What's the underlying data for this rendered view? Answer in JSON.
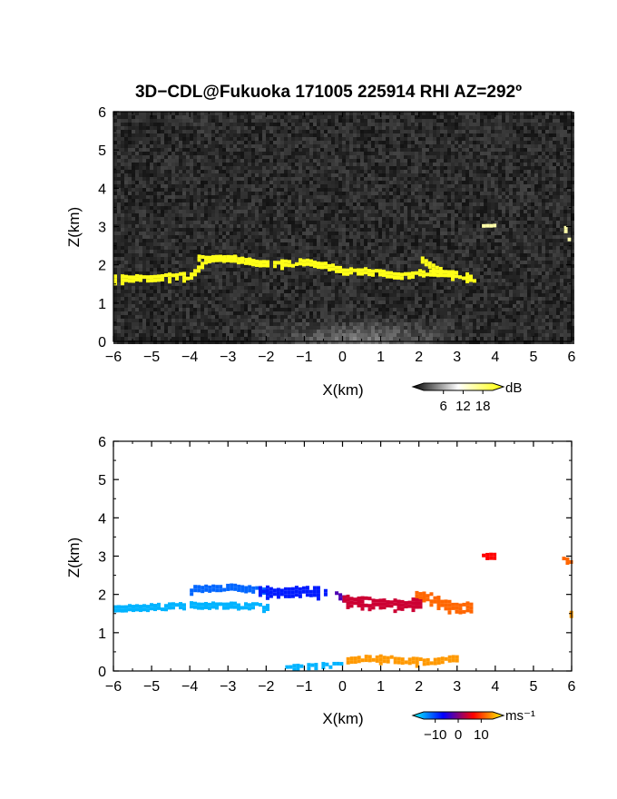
{
  "title": "3D−CDL@Fukuoka 171005 225914 RHI AZ=292º",
  "chart_data": [
    {
      "type": "heatmap",
      "panel": "intensity",
      "xlabel": "X(km)",
      "ylabel": "Z(km)",
      "xlim": [
        -6,
        6
      ],
      "ylim": [
        0,
        6
      ],
      "xticks": [
        "−6",
        "−5",
        "−4",
        "−3",
        "−2",
        "−1",
        "0",
        "1",
        "2",
        "3",
        "4",
        "5",
        "6"
      ],
      "yticks": [
        "0",
        "1",
        "2",
        "3",
        "4",
        "5",
        "6"
      ],
      "background": "noise",
      "colorbar": {
        "unit": "dB",
        "ticks": [
          "6",
          "12",
          "18"
        ],
        "tick_values": [
          6,
          12,
          18
        ],
        "range": [
          0,
          21
        ],
        "colors": [
          "#000000",
          "#ffffff",
          "#ffff00"
        ]
      },
      "layers": [
        {
          "x": [
            -6.0,
            -5.0,
            -4.0,
            -3.6,
            -3.0,
            -2.5,
            -2.0,
            -1.5,
            -1.0,
            -0.5,
            0.0,
            0.5,
            1.0,
            1.5,
            2.0,
            2.5,
            3.0,
            3.5
          ],
          "z": [
            1.65,
            1.68,
            1.73,
            2.15,
            2.2,
            2.1,
            2.05,
            2.05,
            2.1,
            2.0,
            1.85,
            1.85,
            1.8,
            1.72,
            1.8,
            1.8,
            1.75,
            1.65
          ],
          "thickness_km": 0.14,
          "value_db": 20
        },
        {
          "x": [
            -3.8,
            -3.0,
            -2.3
          ],
          "z": [
            2.2,
            2.2,
            2.1
          ],
          "thickness_km": 0.1,
          "value_db": 20
        },
        {
          "x": [
            2.05,
            2.3,
            2.55
          ],
          "z": [
            2.15,
            1.95,
            1.85
          ],
          "thickness_km": 0.18,
          "value_db": 20
        },
        {
          "x": [
            3.65,
            3.95
          ],
          "z": [
            3.02,
            3.03
          ],
          "thickness_km": 0.08,
          "value_db": 14
        },
        {
          "x": [
            5.8,
            5.95,
            5.9
          ],
          "z": [
            2.95,
            2.5,
            2.0
          ],
          "thickness_km": 0.1,
          "value_db": 14
        }
      ],
      "near_ground_glow": {
        "x_center": 0.5,
        "width_km": 3.0,
        "value_db": 10
      }
    },
    {
      "type": "heatmap",
      "panel": "velocity",
      "xlabel": "X(km)",
      "ylabel": "Z(km)",
      "xlim": [
        -6,
        6
      ],
      "ylim": [
        0,
        6
      ],
      "xticks": [
        "−6",
        "−5",
        "−4",
        "−3",
        "−2",
        "−1",
        "0",
        "1",
        "2",
        "3",
        "4",
        "5",
        "6"
      ],
      "yticks": [
        "0",
        "1",
        "2",
        "3",
        "4",
        "5",
        "6"
      ],
      "background": "white",
      "colorbar": {
        "unit": "ms⁻¹",
        "ticks": [
          "−10",
          "0",
          "10"
        ],
        "tick_values": [
          -10,
          0,
          10
        ],
        "range": [
          -15,
          15
        ],
        "colors": [
          "#00ffff",
          "#0000ff",
          "#ff0000",
          "#ffff00"
        ]
      },
      "layers": [
        {
          "x": [
            -6.0,
            -5.0,
            -4.0,
            -3.0,
            -2.0
          ],
          "z": [
            1.65,
            1.68,
            1.73,
            1.72,
            1.7
          ],
          "thickness_km": 0.14,
          "velocity": -12
        },
        {
          "x": [
            -4.0,
            -3.0,
            -2.0
          ],
          "z": [
            2.15,
            2.2,
            2.1
          ],
          "thickness_km": 0.14,
          "velocity": -9
        },
        {
          "x": [
            -2.2,
            -1.5,
            -1.0,
            -0.4
          ],
          "z": [
            2.1,
            2.05,
            2.1,
            2.05
          ],
          "thickness_km": 0.22,
          "velocity": -6
        },
        {
          "x": [
            -0.2,
            0.0
          ],
          "z": [
            2.0,
            1.9
          ],
          "thickness_km": 0.2,
          "velocity": -2
        },
        {
          "x": [
            0.0,
            0.5,
            1.0,
            1.5,
            2.0
          ],
          "z": [
            1.85,
            1.8,
            1.78,
            1.72,
            1.8
          ],
          "thickness_km": 0.22,
          "velocity": 3
        },
        {
          "x": [
            1.9,
            2.3,
            2.6,
            3.0,
            3.4
          ],
          "z": [
            2.0,
            1.9,
            1.75,
            1.65,
            1.7
          ],
          "thickness_km": 0.22,
          "velocity": 9
        },
        {
          "x": [
            3.65,
            3.95
          ],
          "z": [
            3.03,
            3.03
          ],
          "thickness_km": 0.1,
          "velocity": 5
        },
        {
          "x": [
            5.75,
            5.95
          ],
          "z": [
            2.95,
            2.85
          ],
          "thickness_km": 0.1,
          "velocity": 9
        },
        {
          "x": [
            5.85,
            5.95
          ],
          "z": [
            1.6,
            1.5
          ],
          "thickness_km": 0.1,
          "velocity": 11
        },
        {
          "x": [
            -1.5,
            -0.5,
            0.0
          ],
          "z": [
            0.1,
            0.18,
            0.2
          ],
          "thickness_km": 0.1,
          "velocity": -12
        },
        {
          "x": [
            0.1,
            0.8,
            1.5,
            2.2,
            3.0
          ],
          "z": [
            0.3,
            0.35,
            0.3,
            0.25,
            0.35
          ],
          "thickness_km": 0.14,
          "velocity": 11
        }
      ]
    }
  ]
}
